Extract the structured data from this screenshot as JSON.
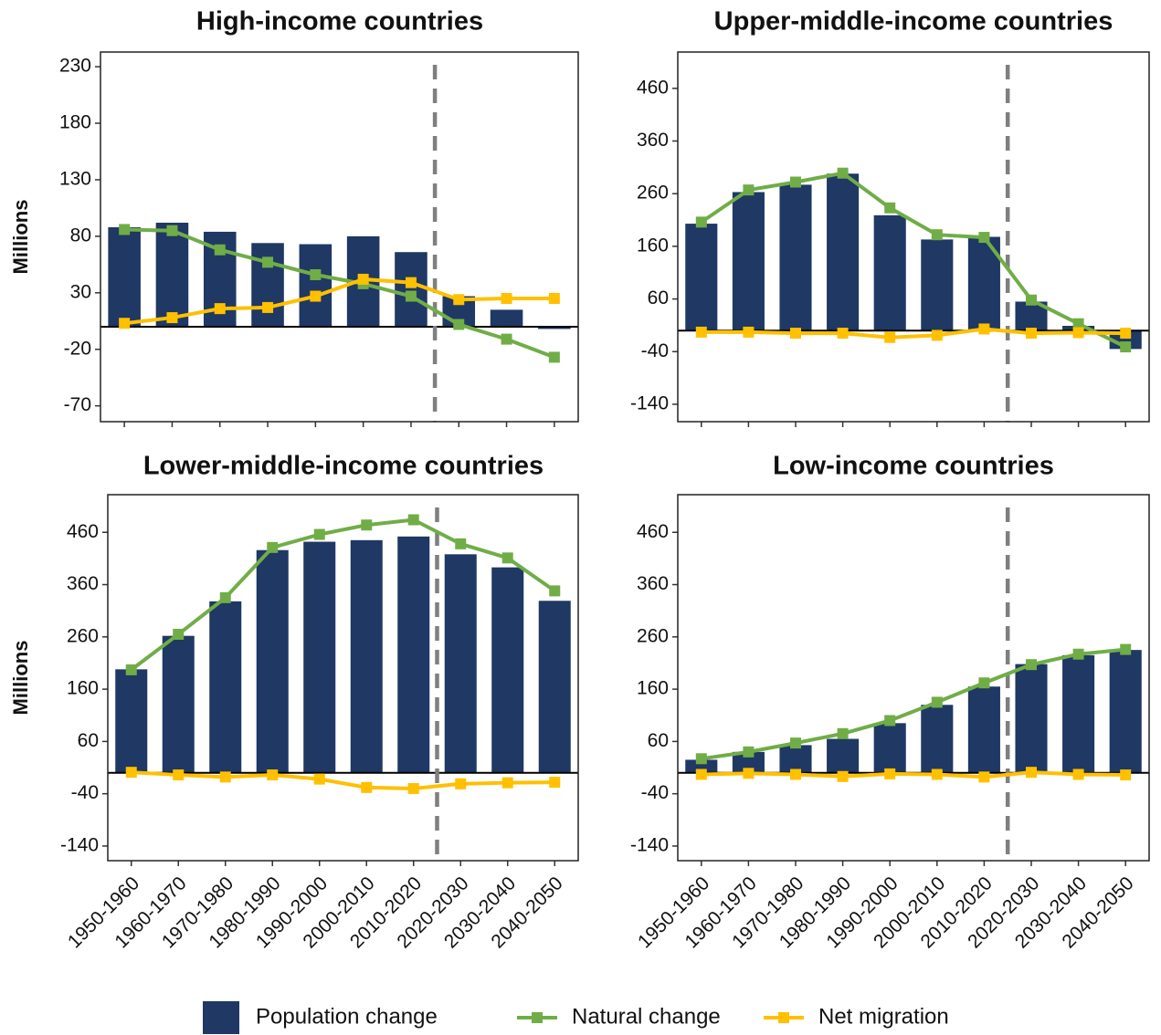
{
  "chart_data": [
    {
      "type": "combo",
      "title": "High-income countries",
      "ylabel": "Millions",
      "ylim": [
        -84,
        243
      ],
      "yticks": [
        -70,
        -20,
        30,
        80,
        130,
        180,
        230
      ],
      "series": [
        {
          "name": "Population change",
          "kind": "bar",
          "color": "#1f3864",
          "values": [
            88,
            92,
            84,
            74,
            73,
            80,
            66,
            27,
            15,
            -2
          ]
        },
        {
          "name": "Natural change",
          "kind": "line",
          "color": "#70ad47",
          "values": [
            86,
            85,
            68,
            57,
            46,
            38,
            27,
            2,
            -11,
            -27
          ]
        },
        {
          "name": "Net migration",
          "kind": "line",
          "color": "#ffc000",
          "values": [
            3,
            8,
            16,
            17,
            27,
            42,
            39,
            24,
            25,
            25
          ]
        }
      ]
    },
    {
      "type": "combo",
      "title": "Upper-middle-income countries",
      "ylim": [
        -173,
        529
      ],
      "yticks": [
        -140,
        -40,
        60,
        160,
        260,
        360,
        460
      ],
      "series": [
        {
          "kind": "bar",
          "color": "#1f3864",
          "values": [
            203,
            263,
            277,
            298,
            219,
            173,
            178,
            55,
            9,
            -35
          ]
        },
        {
          "kind": "line",
          "color": "#70ad47",
          "values": [
            206,
            267,
            282,
            299,
            233,
            182,
            177,
            58,
            13,
            -31
          ]
        },
        {
          "kind": "line",
          "color": "#ffc000",
          "values": [
            -3,
            -3,
            -5,
            -5,
            -13,
            -9,
            3,
            -5,
            -4,
            -5
          ]
        }
      ]
    },
    {
      "type": "combo",
      "title": "Lower-middle-income countries",
      "ylabel": "Millions",
      "categories": [
        "1950-1960",
        "1960-1970",
        "1970-1980",
        "1980-1990",
        "1990-2000",
        "2000-2010",
        "2010-2020",
        "2020-2030",
        "2030-2040",
        "2040-2050"
      ],
      "ylim": [
        -168,
        532
      ],
      "yticks": [
        -140,
        -40,
        60,
        160,
        260,
        360,
        460
      ],
      "series": [
        {
          "kind": "bar",
          "color": "#1f3864",
          "values": [
            198,
            262,
            328,
            426,
            442,
            445,
            452,
            418,
            393,
            329
          ]
        },
        {
          "kind": "line",
          "color": "#70ad47",
          "values": [
            197,
            265,
            335,
            431,
            456,
            474,
            484,
            438,
            411,
            348
          ]
        },
        {
          "kind": "line",
          "color": "#ffc000",
          "values": [
            1,
            -4,
            -8,
            -4,
            -12,
            -28,
            -30,
            -21,
            -19,
            -18
          ]
        }
      ]
    },
    {
      "type": "combo",
      "title": "Low-income countries",
      "categories": [
        "1950-1960",
        "1960-1970",
        "1970-1980",
        "1980-1990",
        "1990-2000",
        "2000-2010",
        "2010-2020",
        "2020-2030",
        "2030-2040",
        "2040-2050"
      ],
      "ylim": [
        -168,
        532
      ],
      "yticks": [
        -140,
        -40,
        60,
        160,
        260,
        360,
        460
      ],
      "series": [
        {
          "kind": "bar",
          "color": "#1f3864",
          "values": [
            25,
            40,
            53,
            65,
            95,
            130,
            165,
            208,
            225,
            235
          ]
        },
        {
          "kind": "line",
          "color": "#70ad47",
          "values": [
            27,
            40,
            57,
            75,
            100,
            135,
            172,
            207,
            227,
            236
          ]
        },
        {
          "kind": "line",
          "color": "#ffc000",
          "values": [
            -3,
            -1,
            -3,
            -7,
            -2,
            -3,
            -8,
            1,
            -3,
            -4
          ]
        }
      ]
    }
  ]
}
